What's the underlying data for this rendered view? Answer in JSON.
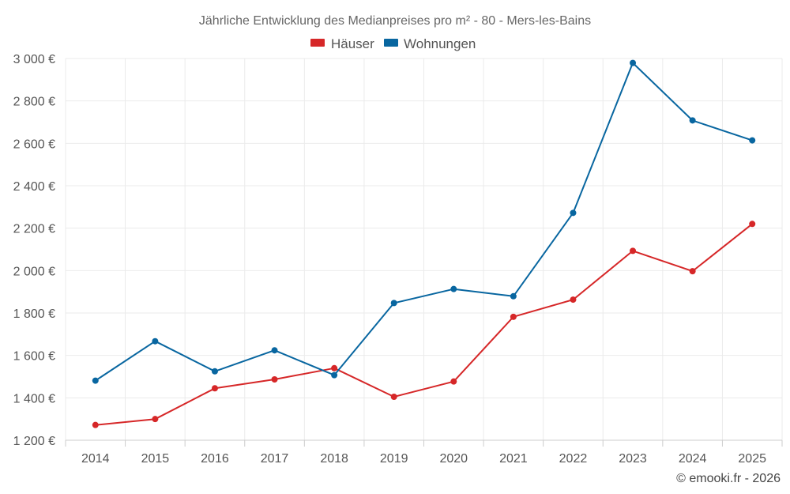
{
  "chart_data": {
    "type": "line",
    "title": "Jährliche Entwicklung des Medianpreises pro m² - 80 - Mers-les-Bains",
    "categories": [
      "2014",
      "2015",
      "2016",
      "2017",
      "2018",
      "2019",
      "2020",
      "2021",
      "2022",
      "2023",
      "2024",
      "2025"
    ],
    "series": [
      {
        "name": "Häuser",
        "color": "#d62728",
        "values": [
          1272,
          1300,
          1445,
          1487,
          1540,
          1405,
          1477,
          1782,
          1863,
          2093,
          1997,
          2220
        ]
      },
      {
        "name": "Wohnungen",
        "color": "#0866a0",
        "values": [
          1481,
          1667,
          1525,
          1624,
          1507,
          1847,
          1913,
          1879,
          2272,
          2979,
          2708,
          2614
        ]
      }
    ],
    "ylim": [
      1200,
      3000
    ],
    "yticks": [
      1200,
      1400,
      1600,
      1800,
      2000,
      2200,
      2400,
      2600,
      2800,
      3000
    ],
    "ytick_labels": [
      "1 200 €",
      "1 400 €",
      "1 600 €",
      "1 800 €",
      "2 000 €",
      "2 200 €",
      "2 400 €",
      "2 600 €",
      "2 800 €",
      "3 000 €"
    ],
    "xlabel": "",
    "ylabel": "",
    "grid": true,
    "legend_position": "top-center"
  },
  "credit": "© emooki.fr - 2026"
}
